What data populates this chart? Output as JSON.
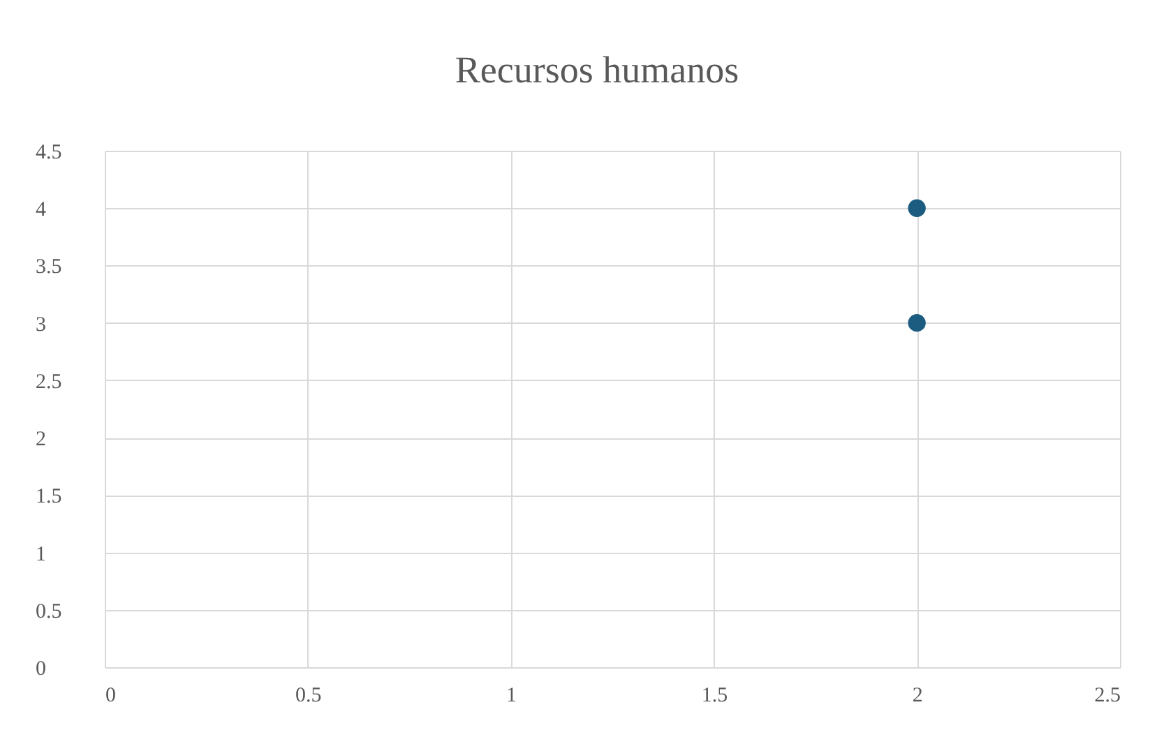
{
  "chart_data": {
    "type": "scatter",
    "title": "Recursos humanos",
    "series": [
      {
        "color": "#1b5c80",
        "x": [
          2,
          2
        ],
        "values": [
          4,
          3
        ]
      }
    ],
    "xlim": [
      0,
      2.5
    ],
    "xticks": [
      0,
      0.5,
      1,
      1.5,
      2,
      2.5
    ],
    "ylim": [
      0,
      4.5
    ],
    "yticks": [
      0,
      0.5,
      1,
      1.5,
      2,
      2.5,
      3,
      3.5,
      4,
      4.5
    ],
    "grid": true,
    "legend": false,
    "marker": "circle"
  }
}
